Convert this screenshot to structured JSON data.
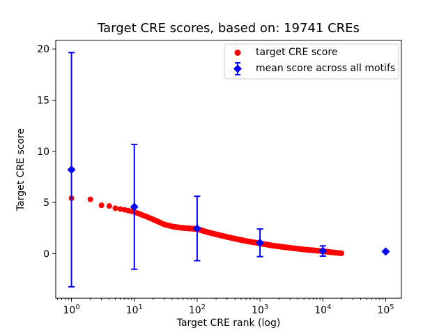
{
  "figure": {
    "background": "#ffffff",
    "axis_color": "#000000"
  },
  "chart_data": {
    "type": "scatter",
    "title": "Target CRE scores, based on: 19741 CREs",
    "xlabel": "Target CRE rank (log)",
    "ylabel": "Target CRE score",
    "x_scale": "log",
    "xlim": [
      0.5623,
      177828
    ],
    "ylim": [
      -4.36,
      20.86
    ],
    "x_tick_base": "10",
    "x_tick_exponents": [
      0,
      1,
      2,
      3,
      4,
      5
    ],
    "y_ticks": [
      0,
      5,
      10,
      15,
      20
    ],
    "grid": false,
    "legend_position": "upper right",
    "series": [
      {
        "name": "target CRE score",
        "marker": "circle",
        "color": "#ff0000",
        "n_total_points": 19741,
        "curve_points": [
          [
            1,
            5.4
          ],
          [
            2,
            5.3
          ],
          [
            3,
            4.72
          ],
          [
            4,
            4.65
          ],
          [
            5,
            4.43
          ],
          [
            6,
            4.35
          ],
          [
            7,
            4.28
          ],
          [
            8,
            4.2
          ],
          [
            9,
            4.13
          ],
          [
            10,
            4.07
          ],
          [
            13,
            3.8
          ],
          [
            17,
            3.52
          ],
          [
            22,
            3.22
          ],
          [
            30,
            2.85
          ],
          [
            40,
            2.65
          ],
          [
            55,
            2.52
          ],
          [
            70,
            2.47
          ],
          [
            100,
            2.4
          ],
          [
            140,
            2.12
          ],
          [
            200,
            1.88
          ],
          [
            300,
            1.62
          ],
          [
            450,
            1.38
          ],
          [
            700,
            1.15
          ],
          [
            1000,
            1.0
          ],
          [
            1500,
            0.8
          ],
          [
            2200,
            0.66
          ],
          [
            3300,
            0.53
          ],
          [
            5000,
            0.4
          ],
          [
            7500,
            0.3
          ],
          [
            10000,
            0.23
          ],
          [
            14000,
            0.12
          ],
          [
            19741,
            0.03
          ]
        ]
      },
      {
        "name": "mean score across all motifs",
        "marker": "diamond",
        "color": "#0000ff",
        "points": [
          {
            "x": 1,
            "y": 8.2,
            "yerr": 11.45
          },
          {
            "x": 10,
            "y": 4.57,
            "yerr": 6.1
          },
          {
            "x": 100,
            "y": 2.45,
            "yerr": 3.15
          },
          {
            "x": 1000,
            "y": 1.05,
            "yerr": 1.35
          },
          {
            "x": 10000,
            "y": 0.25,
            "yerr": 0.5
          },
          {
            "x": 100000,
            "y": 0.2,
            "yerr": 0.05
          }
        ]
      }
    ]
  }
}
